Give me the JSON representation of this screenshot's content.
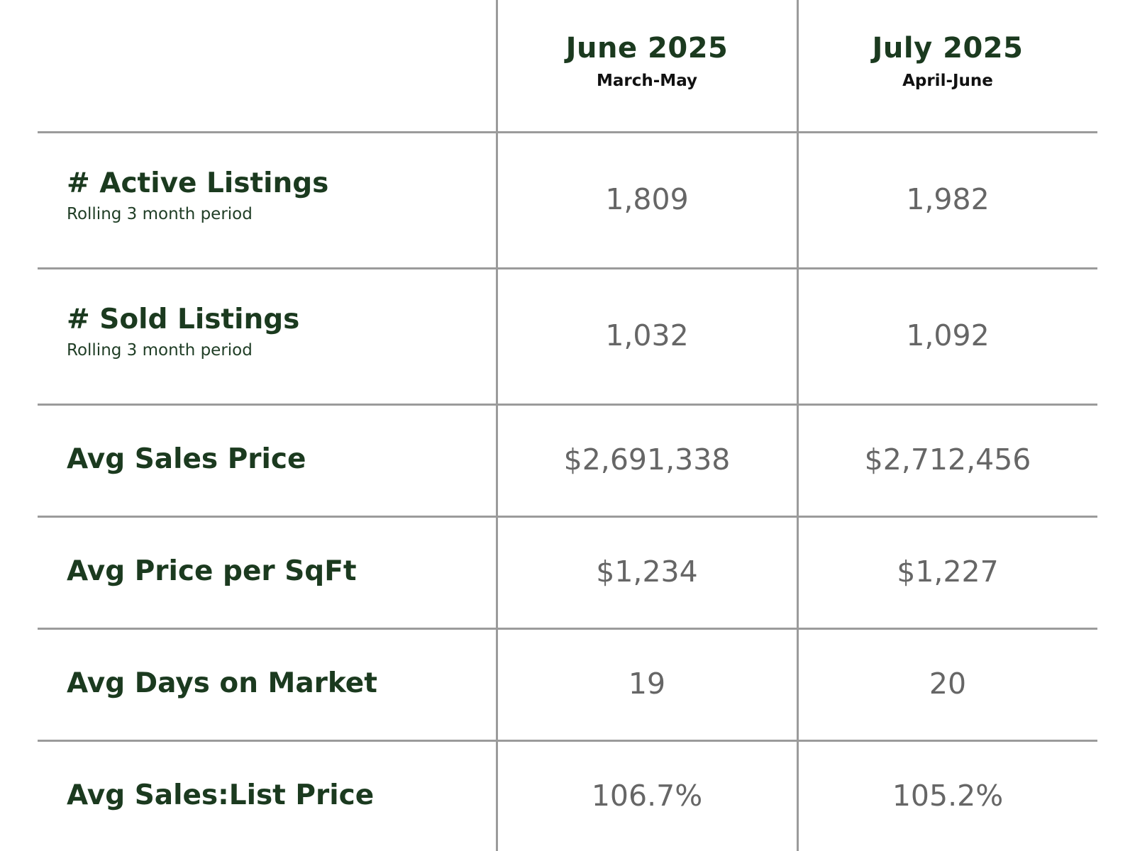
{
  "columns": [
    {
      "title": "June 2025",
      "subtitle": "March-May"
    },
    {
      "title": "July 2025",
      "subtitle": "April-June"
    }
  ],
  "rows": [
    {
      "label": "# Active Listings",
      "sublabel": "Rolling 3 month period",
      "values": [
        "1,809",
        "1,982"
      ]
    },
    {
      "label": "# Sold Listings",
      "sublabel": "Rolling 3 month period",
      "values": [
        "1,032",
        "1,092"
      ]
    },
    {
      "label": "Avg Sales Price",
      "values": [
        "$2,691,338",
        "$2,712,456"
      ]
    },
    {
      "label": "Avg Price per SqFt",
      "values": [
        "$1,234",
        "$1,227"
      ]
    },
    {
      "label": "Avg Days on Market",
      "values": [
        "19",
        "20"
      ]
    },
    {
      "label": "Avg Sales:List Price",
      "values": [
        "106.7%",
        "105.2%"
      ]
    }
  ],
  "colors": {
    "heading": "#1b3a1f",
    "value": "#666666",
    "gridline": "#9b9b9b"
  }
}
